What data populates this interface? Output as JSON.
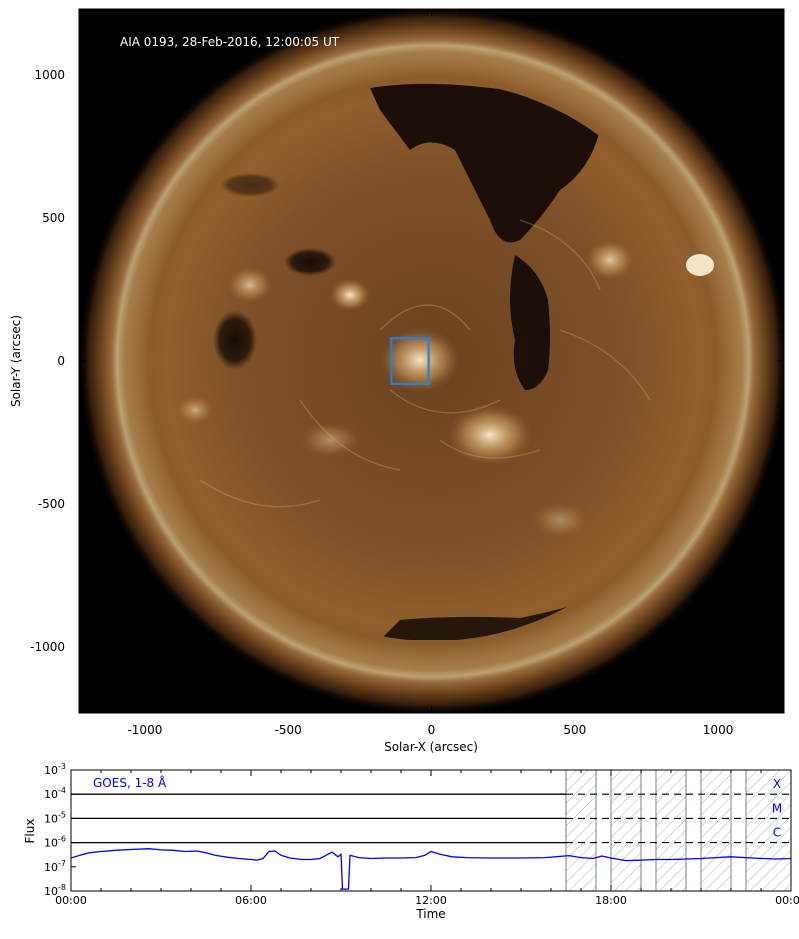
{
  "chart_data": [
    {
      "type": "image",
      "annotation": "AIA 0193, 28-Feb-2016, 12:00:05 UT",
      "xlabel": "Solar-X (arcsec)",
      "ylabel": "Solar-Y (arcsec)",
      "xlim": [
        -1230,
        1230
      ],
      "ylim": [
        -1230,
        1230
      ],
      "xticks": [
        -1000,
        -500,
        0,
        500,
        1000
      ],
      "yticks": [
        -1000,
        -500,
        0,
        500,
        1000
      ],
      "xtick_labels": [
        "-1000",
        "-500",
        "0",
        "500",
        "1000"
      ],
      "ytick_labels": [
        "-1000",
        "-500",
        "0",
        "500",
        "1000"
      ],
      "solar_radius": 1060,
      "box": {
        "x0": -140,
        "x1": -10,
        "y0": -80,
        "y1": 80,
        "color": "#2b7fd6"
      }
    },
    {
      "type": "line",
      "legend": "GOES, 1-8 Å",
      "legend_color": "#0000ee",
      "xlabel": "Time",
      "ylabel": "Flux",
      "x_unit": "hours",
      "xlim": [
        0,
        24
      ],
      "ylim": [
        1e-08,
        0.001
      ],
      "y_scale": "log",
      "xtick_labels": [
        "00:00",
        "06:00",
        "12:00",
        "18:00",
        "00:00"
      ],
      "xtick_values": [
        0,
        6,
        12,
        18,
        24
      ],
      "ytick_labels": [
        {
          "base": "10",
          "exp": "-3"
        },
        {
          "base": "10",
          "exp": "-4"
        },
        {
          "base": "10",
          "exp": "-5"
        },
        {
          "base": "10",
          "exp": "-6"
        },
        {
          "base": "10",
          "exp": "-7"
        },
        {
          "base": "10",
          "exp": "-8"
        }
      ],
      "ytick_values": [
        0.001,
        0.0001,
        1e-05,
        1e-06,
        1e-07,
        1e-08
      ],
      "class_lines": [
        {
          "label": "X",
          "value": 0.0001
        },
        {
          "label": "M",
          "value": 1e-05
        },
        {
          "label": "C",
          "value": 1e-06
        }
      ],
      "shaded_intervals": [
        [
          16.5,
          17.5
        ],
        [
          18.0,
          19.0
        ],
        [
          19.5,
          20.5
        ],
        [
          21.0,
          22.0
        ],
        [
          22.5,
          24.0
        ]
      ],
      "series": [
        {
          "color": "#0000ee",
          "points": [
            [
              0.0,
              2.3e-07
            ],
            [
              0.3,
              3e-07
            ],
            [
              0.6,
              3.8e-07
            ],
            [
              1.0,
              4.3e-07
            ],
            [
              1.5,
              4.8e-07
            ],
            [
              2.0,
              5.2e-07
            ],
            [
              2.6,
              5.6e-07
            ],
            [
              3.0,
              5e-07
            ],
            [
              3.4,
              4.8e-07
            ],
            [
              3.8,
              4.3e-07
            ],
            [
              4.2,
              4.5e-07
            ],
            [
              4.5,
              3.8e-07
            ],
            [
              4.8,
              3e-07
            ],
            [
              5.2,
              2.5e-07
            ],
            [
              5.6,
              2.2e-07
            ],
            [
              6.0,
              2e-07
            ],
            [
              6.2,
              1.9e-07
            ],
            [
              6.4,
              2.2e-07
            ],
            [
              6.6,
              4.3e-07
            ],
            [
              6.8,
              4.5e-07
            ],
            [
              7.0,
              3e-07
            ],
            [
              7.3,
              2.3e-07
            ],
            [
              7.7,
              2e-07
            ],
            [
              8.0,
              2e-07
            ],
            [
              8.3,
              2.2e-07
            ],
            [
              8.5,
              3e-07
            ],
            [
              8.7,
              4e-07
            ],
            [
              8.9,
              2.6e-07
            ],
            [
              9.0,
              3.3e-07
            ],
            [
              9.05,
              1.2e-08
            ],
            [
              9.25,
              1.2e-08
            ],
            [
              9.3,
              3e-07
            ],
            [
              9.6,
              2.4e-07
            ],
            [
              10.0,
              2.2e-07
            ],
            [
              10.5,
              2.3e-07
            ],
            [
              11.0,
              2.3e-07
            ],
            [
              11.5,
              2.4e-07
            ],
            [
              11.8,
              3e-07
            ],
            [
              12.0,
              4.3e-07
            ],
            [
              12.3,
              3.3e-07
            ],
            [
              12.7,
              2.6e-07
            ],
            [
              13.2,
              2.4e-07
            ],
            [
              14.0,
              2.3e-07
            ],
            [
              15.0,
              2.3e-07
            ],
            [
              15.8,
              2.4e-07
            ],
            [
              16.3,
              2.7e-07
            ],
            [
              16.6,
              2.9e-07
            ],
            [
              17.0,
              2.4e-07
            ],
            [
              17.4,
              2.2e-07
            ],
            [
              17.7,
              2.8e-07
            ],
            [
              18.0,
              2.3e-07
            ],
            [
              18.5,
              1.8e-07
            ],
            [
              19.0,
              1.9e-07
            ],
            [
              19.5,
              2e-07
            ],
            [
              20.0,
              2e-07
            ],
            [
              20.5,
              2.1e-07
            ],
            [
              21.0,
              2.2e-07
            ],
            [
              21.5,
              2.4e-07
            ],
            [
              22.0,
              2.6e-07
            ],
            [
              22.5,
              2.4e-07
            ],
            [
              23.0,
              2.2e-07
            ],
            [
              23.5,
              2.1e-07
            ],
            [
              24.0,
              2.2e-07
            ]
          ]
        }
      ]
    }
  ]
}
